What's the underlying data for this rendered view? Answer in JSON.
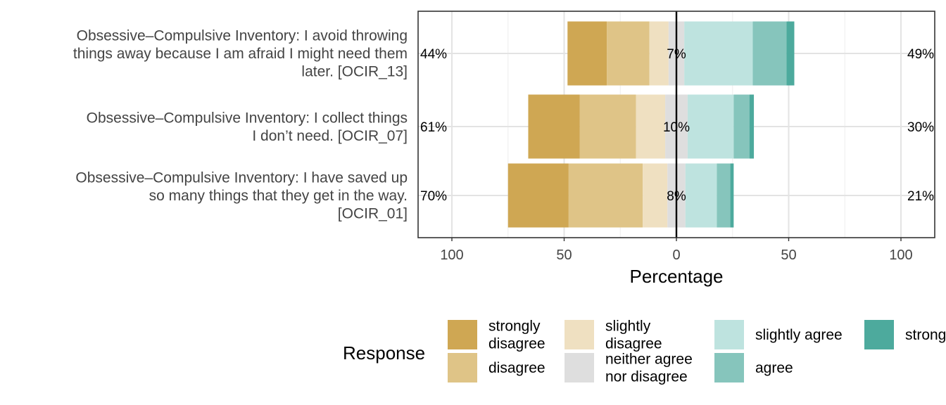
{
  "chart_data": {
    "type": "bar",
    "orientation": "horizontal",
    "stacked": "diverging",
    "categories": [
      "Obsessive–Compulsive Inventory: I avoid throwing things away because I am afraid I might need them later. [OCIR_13]",
      "Obsessive–Compulsive Inventory: I collect things I don’t need. [OCIR_07]",
      "Obsessive–Compulsive Inventory: I have saved up so many things that they get in the way. [OCIR_01]"
    ],
    "category_lines": [
      [
        "Obsessive–Compulsive Inventory: I avoid throwing",
        "things away because I am afraid I might need them",
        "later. [OCIR_13]"
      ],
      [
        "Obsessive–Compulsive Inventory: I collect things",
        "I don’t need. [OCIR_07]"
      ],
      [
        "Obsessive–Compulsive Inventory: I have saved up",
        "so many things that they get in the way.",
        "[OCIR_01]"
      ]
    ],
    "series": [
      {
        "name": "strongly disagree",
        "color": "#CFA753",
        "values": [
          17.5,
          23,
          27
        ]
      },
      {
        "name": "disagree",
        "color": "#DFC487",
        "values": [
          19,
          25,
          33
        ]
      },
      {
        "name": "slightly disagree",
        "color": "#EFE0C1",
        "values": [
          8.5,
          13,
          11
        ]
      },
      {
        "name": "neither agree nor disagree",
        "color": "#DEDEDE",
        "values": [
          7,
          10,
          8
        ]
      },
      {
        "name": "slightly agree",
        "color": "#BEE3DF",
        "values": [
          30.5,
          20.5,
          14
        ]
      },
      {
        "name": "agree",
        "color": "#86C5BC",
        "values": [
          15,
          7,
          6
        ]
      },
      {
        "name": "strongly agree",
        "color": "#4DAA9D",
        "values": [
          3.5,
          2,
          1.5
        ]
      }
    ],
    "left_pct_labels": [
      "44%",
      "61%",
      "70%"
    ],
    "center_pct_labels": [
      "7%",
      "10%",
      "8%"
    ],
    "right_pct_labels": [
      "49%",
      "30%",
      "21%"
    ],
    "xlabel": "Percentage",
    "xlim": [
      -100,
      100
    ],
    "xticks": [
      -100,
      -50,
      0,
      50,
      100
    ],
    "xtick_labels": [
      "100",
      "50",
      "0",
      "50",
      "100"
    ],
    "grid": true,
    "legend": {
      "title": "Response",
      "position": "bottom",
      "label_lines": [
        [
          "strongly",
          "disagree"
        ],
        [
          "disagree"
        ],
        [
          "slightly",
          "disagree"
        ],
        [
          "neither agree",
          "nor disagree"
        ],
        [
          "slightly agree"
        ],
        [
          "agree"
        ],
        [
          "strongly agree"
        ]
      ]
    }
  }
}
